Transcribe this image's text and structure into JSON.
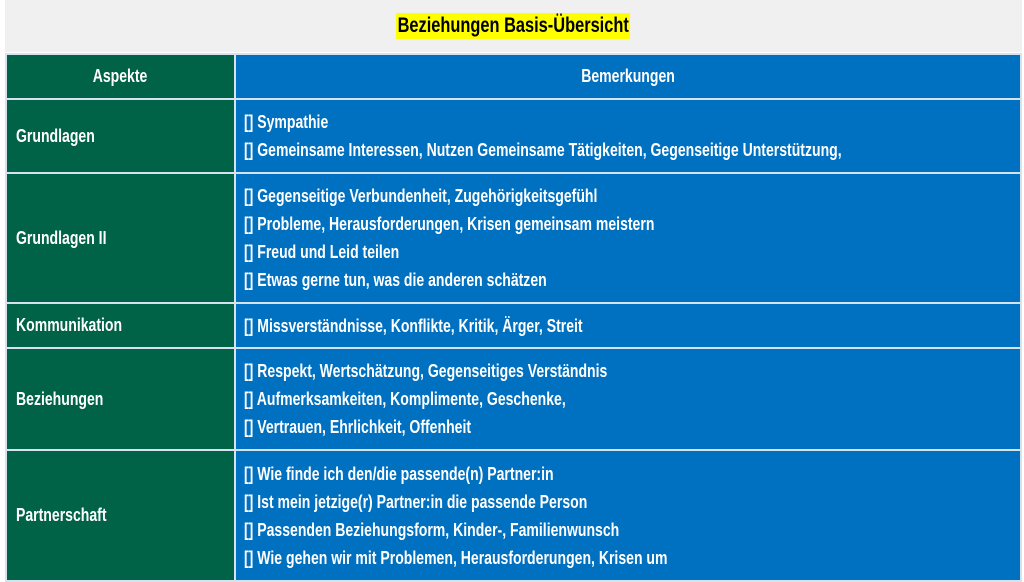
{
  "title": "Beziehungen Basis-Übersicht",
  "colors": {
    "aspect_bg": "#006347",
    "remark_bg": "#0070c0",
    "title_highlight": "#ffff00"
  },
  "headers": {
    "aspects": "Aspekte",
    "remarks": "Bemerkungen"
  },
  "rows": [
    {
      "aspect": "Grundlagen",
      "remarks": [
        "[] Sympathie",
        "[] Gemeinsame Interessen, Nutzen Gemeinsame Tätigkeiten, Gegenseitige Unterstützung,"
      ]
    },
    {
      "aspect": "Grundlagen II",
      "remarks": [
        "[] Gegenseitige Verbundenheit, Zugehörigkeitsgefühl",
        "[] Probleme, Herausforderungen, Krisen gemeinsam meistern",
        "[] Freud und Leid teilen",
        "[] Etwas gerne tun, was die anderen schätzen"
      ]
    },
    {
      "aspect": "Kommunikation",
      "remarks": [
        "[] Missverständnisse, Konflikte, Kritik, Ärger, Streit"
      ]
    },
    {
      "aspect": "Beziehungen",
      "remarks": [
        "[] Respekt, Wertschätzung, Gegenseitiges Verständnis",
        "[] Aufmerksamkeiten, Komplimente, Geschenke,",
        "[] Vertrauen, Ehrlichkeit, Offenheit"
      ]
    },
    {
      "aspect": "Partnerschaft",
      "remarks": [
        "[] Wie finde ich den/die passende(n) Partner:in",
        "[] Ist mein jetzige(r) Partner:in die passende Person",
        "[] Passenden Beziehungsform, Kinder-, Familienwunsch",
        "[] Wie gehen wir mit Problemen, Herausforderungen, Krisen um"
      ]
    }
  ]
}
